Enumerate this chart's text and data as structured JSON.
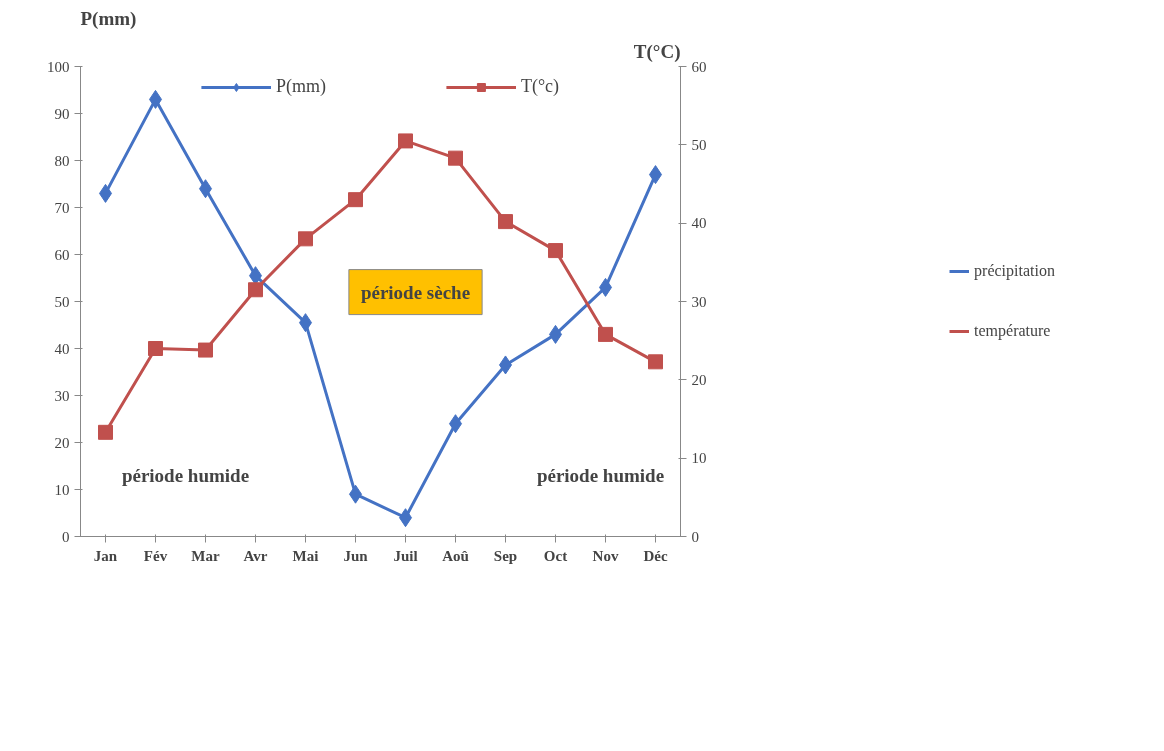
{
  "chart_data": {
    "type": "line",
    "ylabel": "P(mm)",
    "y2label": "T(°C)",
    "categories": [
      "Jan",
      "Fév",
      "Mar",
      "Avr",
      "Mai",
      "Jun",
      "Juil",
      "Aoû",
      "Sep",
      "Oct",
      "Nov",
      "Déc"
    ],
    "ylim": [
      0,
      100
    ],
    "yticks": [
      0,
      10,
      20,
      30,
      40,
      50,
      60,
      70,
      80,
      90,
      100
    ],
    "y2lim": [
      0,
      60
    ],
    "y2ticks": [
      0,
      10,
      20,
      30,
      40,
      50,
      60
    ],
    "series": [
      {
        "name": "P(mm)",
        "color": "#4472c4",
        "marker": "diamond",
        "values": [
          73,
          93,
          74,
          55.5,
          45.5,
          9,
          4,
          24,
          36.5,
          43,
          53,
          77
        ]
      },
      {
        "name": "T(°c)",
        "color": "#c0504d",
        "marker": "square",
        "axis": "y2",
        "values": [
          13.3,
          24,
          23.8,
          31.5,
          38,
          43,
          50.5,
          48.3,
          40.2,
          36.5,
          25.8,
          22.3
        ]
      }
    ],
    "annotations": [
      "période sèche",
      "période humide",
      "période humide",
      "précipitation",
      "température"
    ],
    "legend": "top",
    "line_style": "solid"
  }
}
